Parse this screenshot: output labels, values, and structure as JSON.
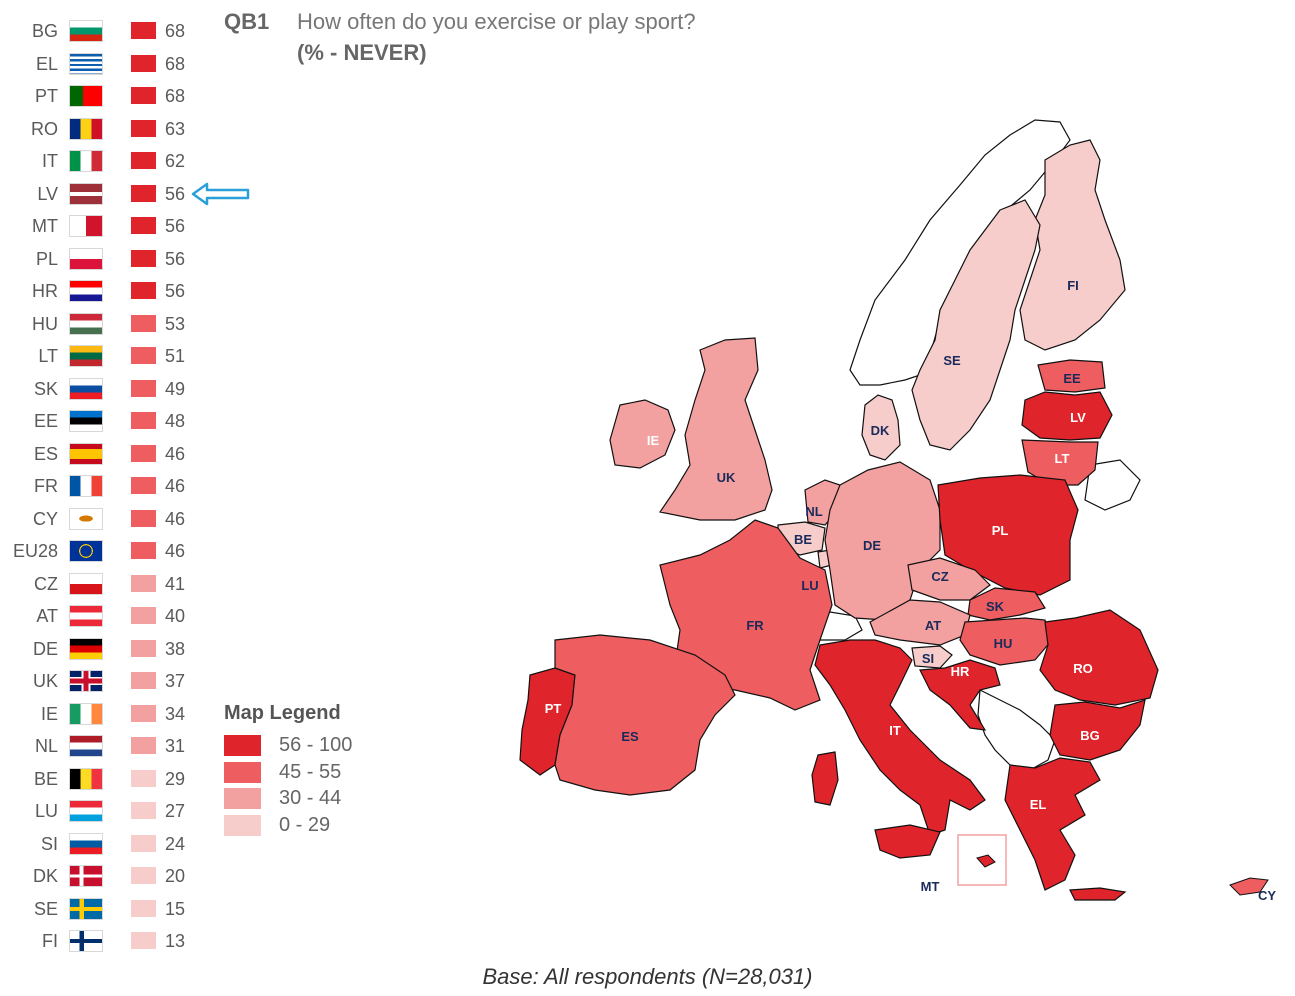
{
  "question": {
    "id": "QB1",
    "text": "How often do you exercise or play sport?",
    "subtitle": "(% - NEVER)"
  },
  "colors": {
    "band_56_100": "#e0242b",
    "band_45_55": "#ee5d5f",
    "band_30_44": "#f3a0a0",
    "band_0_29": "#f6cdcb",
    "no_data": "#ffffff",
    "border": "#111111",
    "arrow": "#2a9fd8"
  },
  "chart_data": {
    "type": "table",
    "rows": [
      {
        "code": "BG",
        "value": 68,
        "band": 0,
        "flag": "bg"
      },
      {
        "code": "EL",
        "value": 68,
        "band": 0,
        "flag": "el"
      },
      {
        "code": "PT",
        "value": 68,
        "band": 0,
        "flag": "pt"
      },
      {
        "code": "RO",
        "value": 63,
        "band": 0,
        "flag": "ro"
      },
      {
        "code": "IT",
        "value": 62,
        "band": 0,
        "flag": "it"
      },
      {
        "code": "LV",
        "value": 56,
        "band": 0,
        "flag": "lv"
      },
      {
        "code": "MT",
        "value": 56,
        "band": 0,
        "flag": "mt"
      },
      {
        "code": "PL",
        "value": 56,
        "band": 0,
        "flag": "pl"
      },
      {
        "code": "HR",
        "value": 56,
        "band": 0,
        "flag": "hr"
      },
      {
        "code": "HU",
        "value": 53,
        "band": 1,
        "flag": "hu"
      },
      {
        "code": "LT",
        "value": 51,
        "band": 1,
        "flag": "lt"
      },
      {
        "code": "SK",
        "value": 49,
        "band": 1,
        "flag": "sk"
      },
      {
        "code": "EE",
        "value": 48,
        "band": 1,
        "flag": "ee"
      },
      {
        "code": "ES",
        "value": 46,
        "band": 1,
        "flag": "es"
      },
      {
        "code": "FR",
        "value": 46,
        "band": 1,
        "flag": "fr"
      },
      {
        "code": "CY",
        "value": 46,
        "band": 1,
        "flag": "cy"
      },
      {
        "code": "EU28",
        "value": 46,
        "band": 1,
        "flag": "eu"
      },
      {
        "code": "CZ",
        "value": 41,
        "band": 2,
        "flag": "cz"
      },
      {
        "code": "AT",
        "value": 40,
        "band": 2,
        "flag": "at"
      },
      {
        "code": "DE",
        "value": 38,
        "band": 2,
        "flag": "de"
      },
      {
        "code": "UK",
        "value": 37,
        "band": 2,
        "flag": "uk"
      },
      {
        "code": "IE",
        "value": 34,
        "band": 2,
        "flag": "ie"
      },
      {
        "code": "NL",
        "value": 31,
        "band": 2,
        "flag": "nl"
      },
      {
        "code": "BE",
        "value": 29,
        "band": 3,
        "flag": "be"
      },
      {
        "code": "LU",
        "value": 27,
        "band": 3,
        "flag": "lu"
      },
      {
        "code": "SI",
        "value": 24,
        "band": 3,
        "flag": "si"
      },
      {
        "code": "DK",
        "value": 20,
        "band": 3,
        "flag": "dk"
      },
      {
        "code": "SE",
        "value": 15,
        "band": 3,
        "flag": "se"
      },
      {
        "code": "FI",
        "value": 13,
        "band": 3,
        "flag": "fi"
      }
    ],
    "highlighted_code": "LV"
  },
  "legend": {
    "title": "Map Legend",
    "items": [
      {
        "label": "56 - 100",
        "band": 0
      },
      {
        "label": "45 - 55",
        "band": 1
      },
      {
        "label": "30 - 44",
        "band": 2
      },
      {
        "label": "0 - 29",
        "band": 3
      }
    ]
  },
  "map": {
    "labels": [
      "FI",
      "SE",
      "EE",
      "LV",
      "LT",
      "DK",
      "IE",
      "UK",
      "NL",
      "BE",
      "LU",
      "DE",
      "PL",
      "CZ",
      "SK",
      "AT",
      "HU",
      "SI",
      "HR",
      "RO",
      "FR",
      "PT",
      "ES",
      "IT",
      "BG",
      "EL",
      "MT",
      "CY"
    ]
  },
  "base_note": "Base: All respondents (N=28,031)"
}
